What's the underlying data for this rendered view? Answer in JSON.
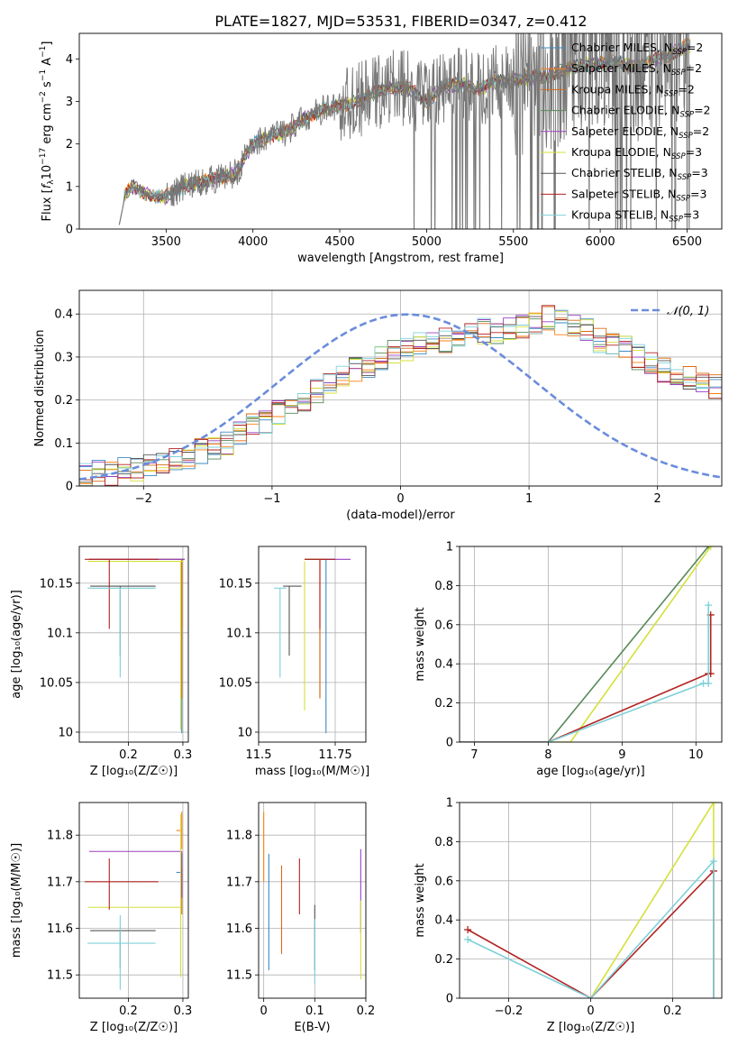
{
  "figure": {
    "title": "PLATE=1827, MJD=53531, FIBERID=0347, z=0.412"
  },
  "models": [
    {
      "name": "Chabrier MILES",
      "nssp": "2",
      "color": "#3b8bc2"
    },
    {
      "name": "Salpeter MILES",
      "nssp": "2",
      "color": "#ff7f0e"
    },
    {
      "name": "Kroupa MILES",
      "nssp": "2",
      "color": "#d96a16"
    },
    {
      "name": "Chabrier ELODIE",
      "nssp": "2",
      "color": "#5a8a5a"
    },
    {
      "name": "Salpeter ELODIE",
      "nssp": "2",
      "color": "#9a3fc0"
    },
    {
      "name": "Kroupa ELODIE",
      "nssp": "3",
      "color": "#d4e03a"
    },
    {
      "name": "Chabrier STELIB",
      "nssp": "3",
      "color": "#555555"
    },
    {
      "name": "Salpeter STELIB",
      "nssp": "3",
      "color": "#b22222"
    },
    {
      "name": "Kroupa STELIB",
      "nssp": "3",
      "color": "#7fd0d8"
    }
  ],
  "chart_data": [
    {
      "id": "spectrum",
      "type": "line",
      "xlabel": "wavelength [Angstrom, rest frame]",
      "ylabel": "Flux [f_λ 10^-17 erg cm^-2 s^-1 A^-1]",
      "xlim": [
        3000,
        6700
      ],
      "ylim": [
        0,
        4.6
      ],
      "xticks": [
        3500,
        4000,
        4500,
        5000,
        5500,
        6000,
        6500
      ],
      "yticks": [
        0,
        1,
        2,
        3,
        4
      ],
      "data_color": "#777777",
      "continuum": {
        "x": [
          3230,
          3300,
          3400,
          3500,
          3600,
          3700,
          3800,
          3900,
          4000,
          4100,
          4200,
          4300,
          4400,
          4500,
          4600,
          4700,
          4800,
          4900,
          5000,
          5100,
          5200,
          5300,
          5400,
          5500,
          5600,
          5700,
          5800,
          5900,
          6000,
          6100,
          6200,
          6300,
          6400,
          6500
        ],
        "y": [
          0.6,
          1.0,
          0.8,
          0.75,
          1.0,
          1.1,
          1.2,
          1.3,
          2.0,
          2.2,
          2.3,
          2.6,
          2.8,
          2.9,
          3.0,
          3.2,
          3.35,
          3.3,
          3.0,
          3.35,
          3.4,
          3.3,
          3.45,
          3.5,
          3.55,
          3.6,
          3.75,
          3.85,
          3.9,
          3.9,
          3.8,
          3.95,
          4.1,
          4.3
        ]
      },
      "legend_position": "upper right",
      "grid": false
    },
    {
      "id": "residuals",
      "type": "histogram",
      "xlabel": "(data-model)/error",
      "ylabel": "Normed distribution",
      "xlim": [
        -2.5,
        2.5
      ],
      "ylim": [
        0,
        0.455
      ],
      "xticks": [
        -2,
        -1,
        0,
        1,
        2
      ],
      "yticks": [
        0.0,
        0.1,
        0.2,
        0.3,
        0.4
      ],
      "reference_curve": {
        "label": "𝒩(0, 1)",
        "mean": 0.05,
        "sigma": 1.0,
        "color": "#6a8cdb"
      },
      "bins": {
        "start": -2.5,
        "width": 0.1
      },
      "base_hist": [
        0.03,
        0.03,
        0.03,
        0.04,
        0.04,
        0.05,
        0.05,
        0.06,
        0.07,
        0.08,
        0.09,
        0.1,
        0.12,
        0.14,
        0.15,
        0.17,
        0.18,
        0.2,
        0.22,
        0.24,
        0.26,
        0.27,
        0.28,
        0.3,
        0.31,
        0.32,
        0.33,
        0.33,
        0.34,
        0.35,
        0.35,
        0.36,
        0.36,
        0.37,
        0.37,
        0.38,
        0.39,
        0.38,
        0.37,
        0.36,
        0.34,
        0.33,
        0.32,
        0.3,
        0.29,
        0.27,
        0.26,
        0.25,
        0.24,
        0.23,
        0.22,
        0.21,
        0.2,
        0.19,
        0.17,
        0.16,
        0.15,
        0.14,
        0.13,
        0.12,
        0.11,
        0.11,
        0.1,
        0.09,
        0.08,
        0.08,
        0.07,
        0.07,
        0.06,
        0.06,
        0.06,
        0.05,
        0.05,
        0.05,
        0.05,
        0.04,
        0.04,
        0.04,
        0.03,
        0.03
      ],
      "legend_position": "upper right",
      "grid": true
    },
    {
      "id": "age_vs_Z",
      "type": "errorbar",
      "xlabel": "Z [log₁₀(Z/Z☉)]",
      "ylabel": "age  [log₁₀(age/yr)]",
      "xlim": [
        0.11,
        0.31
      ],
      "ylim": [
        9.99,
        10.187
      ],
      "xticks": [
        0.2,
        0.3
      ],
      "yticks": [
        10.0,
        10.05,
        10.1,
        10.15
      ],
      "points": [
        {
          "model": 0,
          "x": 0.298,
          "y": 10.174,
          "xerr": [
            0.17,
            0.005
          ],
          "yerr": [
            0.175,
            0.0
          ]
        },
        {
          "model": 1,
          "x": 0.298,
          "y": 10.174,
          "xerr": [
            0.17,
            0.005
          ],
          "yerr": [
            0.07,
            0.0
          ]
        },
        {
          "model": 2,
          "x": 0.298,
          "y": 10.174,
          "xerr": [
            0.17,
            0.005
          ],
          "yerr": [
            0.14,
            0.0
          ]
        },
        {
          "model": 3,
          "x": 0.298,
          "y": 10.174,
          "xerr": [
            0.17,
            0.005
          ],
          "yerr": [
            0.0,
            0.0
          ]
        },
        {
          "model": 4,
          "x": 0.298,
          "y": 10.174,
          "xerr": [
            0.17,
            0.005
          ],
          "yerr": [
            0.0,
            0.0
          ]
        },
        {
          "model": 5,
          "x": 0.296,
          "y": 10.172,
          "xerr": [
            0.17,
            0.005
          ],
          "yerr": [
            0.17,
            0.0
          ]
        },
        {
          "model": 6,
          "x": 0.185,
          "y": 10.147,
          "xerr": [
            0.055,
            0.065
          ],
          "yerr": [
            0.07,
            0.0
          ]
        },
        {
          "model": 7,
          "x": 0.165,
          "y": 10.174,
          "xerr": [
            0.045,
            0.09
          ],
          "yerr": [
            0.07,
            0.0
          ]
        },
        {
          "model": 8,
          "x": 0.185,
          "y": 10.145,
          "xerr": [
            0.06,
            0.065
          ],
          "yerr": [
            0.09,
            0.0
          ]
        }
      ],
      "grid": true
    },
    {
      "id": "age_vs_mass",
      "type": "errorbar",
      "xlabel": "mass [log₁₀(M/M☉)]",
      "ylabel": "",
      "xlim": [
        11.5,
        11.85
      ],
      "ylim": [
        9.99,
        10.187
      ],
      "xticks": [
        11.5,
        11.75
      ],
      "yticks": [
        10.0,
        10.05,
        10.1,
        10.15
      ],
      "points": [
        {
          "model": 0,
          "x": 11.72,
          "y": 10.174,
          "xerr": [
            0.05,
            0.03
          ],
          "yerr": [
            0.175,
            0.0
          ]
        },
        {
          "model": 1,
          "x": 11.7,
          "y": 10.174,
          "xerr": [
            0.05,
            0.03
          ],
          "yerr": [
            0.14,
            0.0
          ]
        },
        {
          "model": 2,
          "x": 11.7,
          "y": 10.174,
          "xerr": [
            0.05,
            0.03
          ],
          "yerr": [
            0.14,
            0.0
          ]
        },
        {
          "model": 3,
          "x": 11.7,
          "y": 10.174,
          "xerr": [
            0.05,
            0.03
          ],
          "yerr": [
            0.0,
            0.0
          ]
        },
        {
          "model": 4,
          "x": 11.77,
          "y": 10.174,
          "xerr": [
            0.06,
            0.03
          ],
          "yerr": [
            0.0,
            0.0
          ]
        },
        {
          "model": 5,
          "x": 11.65,
          "y": 10.172,
          "xerr": [
            0.0,
            0.0
          ],
          "yerr": [
            0.15,
            0.0
          ]
        },
        {
          "model": 6,
          "x": 11.6,
          "y": 10.147,
          "xerr": [
            0.02,
            0.04
          ],
          "yerr": [
            0.07,
            0.0
          ]
        },
        {
          "model": 7,
          "x": 11.7,
          "y": 10.174,
          "xerr": [
            0.05,
            0.05
          ],
          "yerr": [
            0.07,
            0.0
          ]
        },
        {
          "model": 8,
          "x": 11.57,
          "y": 10.145,
          "xerr": [
            0.02,
            0.02
          ],
          "yerr": [
            0.09,
            0.0
          ]
        }
      ],
      "grid": true
    },
    {
      "id": "massweight_vs_age",
      "type": "line",
      "xlabel": "age  [log₁₀(age/yr)]",
      "ylabel": "mass weight",
      "xlim": [
        6.8,
        10.35
      ],
      "ylim": [
        0,
        1.0
      ],
      "xticks": [
        7,
        8,
        9,
        10
      ],
      "yticks": [
        0.0,
        0.2,
        0.4,
        0.6,
        0.8,
        1.0
      ],
      "series": [
        {
          "model": 3,
          "x": [
            6.8,
            8.0,
            10.17
          ],
          "y": [
            0,
            0,
            1.0
          ]
        },
        {
          "model": 5,
          "x": [
            6.8,
            8.3,
            10.2
          ],
          "y": [
            0,
            0,
            1.0
          ]
        },
        {
          "model": 7,
          "x": [
            6.8,
            8.0,
            10.17,
            10.2,
            10.2
          ],
          "y": [
            0,
            0,
            0.35,
            0.35,
            0.65
          ]
        },
        {
          "model": 8,
          "x": [
            6.8,
            8.0,
            10.1,
            10.17,
            10.17
          ],
          "y": [
            0,
            0,
            0.3,
            0.3,
            0.7
          ]
        }
      ],
      "grid": true
    },
    {
      "id": "mass_vs_Z",
      "type": "errorbar",
      "xlabel": "Z [log₁₀(Z/Z☉)]",
      "ylabel": "mass [log₁₀(M/M☉)]",
      "xlim": [
        0.11,
        0.31
      ],
      "ylim": [
        11.45,
        11.87
      ],
      "xticks": [
        0.2,
        0.3
      ],
      "yticks": [
        11.5,
        11.6,
        11.7,
        11.8
      ],
      "points": [
        {
          "model": 0,
          "x": 0.298,
          "y": 11.72,
          "xerr": [
            0.01,
            0.0
          ],
          "yerr": [
            0.05,
            0.04
          ]
        },
        {
          "model": 1,
          "x": 0.298,
          "y": 11.81,
          "xerr": [
            0.01,
            0.0
          ],
          "yerr": [
            0.04,
            0.04
          ]
        },
        {
          "model": 2,
          "x": 0.298,
          "y": 11.68,
          "xerr": [
            0.0,
            0.0
          ],
          "yerr": [
            0.05,
            0.05
          ]
        },
        {
          "model": 4,
          "x": 0.298,
          "y": 11.765,
          "xerr": [
            0.17,
            0.0
          ],
          "yerr": [
            0.1,
            0.0
          ]
        },
        {
          "model": 5,
          "x": 0.296,
          "y": 11.645,
          "xerr": [
            0.17,
            0.0
          ],
          "yerr": [
            0.15,
            0.2
          ]
        },
        {
          "model": 6,
          "x": 0.185,
          "y": 11.595,
          "xerr": [
            0.055,
            0.065
          ],
          "yerr": [
            0.08,
            0.0
          ]
        },
        {
          "model": 7,
          "x": 0.165,
          "y": 11.7,
          "xerr": [
            0.045,
            0.09
          ],
          "yerr": [
            0.06,
            0.05
          ]
        },
        {
          "model": 8,
          "x": 0.185,
          "y": 11.568,
          "xerr": [
            0.06,
            0.065
          ],
          "yerr": [
            0.1,
            0.06
          ]
        }
      ],
      "grid": true
    },
    {
      "id": "mass_vs_ebv",
      "type": "errorbar",
      "xlabel": "E(B-V)",
      "ylabel": "",
      "xlim": [
        -0.01,
        0.2
      ],
      "ylim": [
        11.45,
        11.87
      ],
      "xticks": [
        0.0,
        0.1,
        0.2
      ],
      "yticks": [
        11.5,
        11.6,
        11.7,
        11.8
      ],
      "points": [
        {
          "model": 0,
          "x": 0.01,
          "y": 11.62,
          "xerr": [
            0,
            0
          ],
          "yerr": [
            0.11,
            0.14
          ]
        },
        {
          "model": 1,
          "x": 0.0,
          "y": 11.78,
          "xerr": [
            0,
            0
          ],
          "yerr": [
            0.08,
            0.07
          ]
        },
        {
          "model": 2,
          "x": 0.035,
          "y": 11.64,
          "xerr": [
            0,
            0
          ],
          "yerr": [
            0.095,
            0.095
          ]
        },
        {
          "model": 4,
          "x": 0.19,
          "y": 11.68,
          "xerr": [
            0,
            0
          ],
          "yerr": [
            0.09,
            0.09
          ]
        },
        {
          "model": 5,
          "x": 0.19,
          "y": 11.6,
          "xerr": [
            0,
            0
          ],
          "yerr": [
            0.11,
            0.06
          ]
        },
        {
          "model": 6,
          "x": 0.1,
          "y": 11.58,
          "xerr": [
            0,
            0
          ],
          "yerr": [
            0.07,
            0.07
          ]
        },
        {
          "model": 7,
          "x": 0.07,
          "y": 11.69,
          "xerr": [
            0,
            0
          ],
          "yerr": [
            0.06,
            0.06
          ]
        },
        {
          "model": 8,
          "x": 0.1,
          "y": 11.54,
          "xerr": [
            0,
            0
          ],
          "yerr": [
            0.06,
            0.08
          ]
        }
      ],
      "grid": true
    },
    {
      "id": "massweight_vs_Z",
      "type": "line",
      "xlabel": "Z [log₁₀(Z/Z☉)]",
      "ylabel": "mass weight",
      "xlim": [
        -0.32,
        0.32
      ],
      "ylim": [
        0,
        1.0
      ],
      "xticks": [
        -0.2,
        0.0,
        0.2
      ],
      "yticks": [
        0.0,
        0.2,
        0.4,
        0.6,
        0.8,
        1.0
      ],
      "series": [
        {
          "model": 5,
          "x": [
            0.0,
            0.3,
            0.3,
            0.3
          ],
          "y": [
            0.0,
            1.0,
            1.0,
            0.0
          ]
        },
        {
          "model": 7,
          "x": [
            -0.3,
            0.0,
            0.3,
            0.3
          ],
          "y": [
            0.35,
            0.0,
            0.65,
            0.0
          ]
        },
        {
          "model": 8,
          "x": [
            -0.3,
            0.0,
            0.3,
            0.3
          ],
          "y": [
            0.3,
            0.0,
            0.7,
            0.0
          ]
        }
      ],
      "grid": true
    }
  ]
}
